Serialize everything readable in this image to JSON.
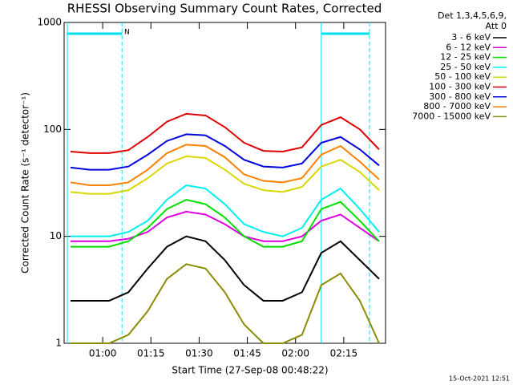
{
  "chart_data": {
    "type": "line",
    "title": "RHESSI Observing Summary Count Rates, Corrected",
    "x_label": "Start Time (27-Sep-08 00:48:22)",
    "y_label": "Corrected Count Rate (s⁻¹ detector⁻¹)",
    "footer": "15-Oct-2021 12:51",
    "legend_title": [
      "Det 1,3,4,5,6,9,",
      "Att 0"
    ],
    "annotation": "N",
    "night_intervals": [
      [
        "00:49",
        "01:06"
      ],
      [
        "02:08",
        "02:23"
      ]
    ],
    "night_color": "#00e0f0",
    "log_scale": true,
    "ylim": [
      1,
      1000
    ],
    "yticks": [
      1,
      10,
      100,
      1000
    ],
    "xlim": [
      "00:48",
      "02:28"
    ],
    "xticks": [
      "01:00",
      "01:15",
      "01:30",
      "01:45",
      "02:00",
      "02:15"
    ],
    "x": [
      "00:50",
      "00:56",
      "01:02",
      "01:08",
      "01:14",
      "01:20",
      "01:26",
      "01:32",
      "01:38",
      "01:44",
      "01:50",
      "01:56",
      "02:02",
      "02:08",
      "02:14",
      "02:20",
      "02:26"
    ],
    "series": [
      {
        "name": "3 - 6 keV",
        "color": "#000000",
        "values": [
          2.5,
          2.5,
          2.5,
          3,
          5,
          8,
          10,
          9,
          6,
          3.5,
          2.5,
          2.5,
          3,
          7,
          9,
          6,
          4
        ]
      },
      {
        "name": "6 - 12 keV",
        "color": "#e000e0",
        "values": [
          9,
          9,
          9,
          9.5,
          11,
          15,
          17,
          16,
          13,
          10,
          9,
          9,
          10,
          14,
          16,
          12,
          9
        ]
      },
      {
        "name": "12 - 25 keV",
        "color": "#00e000",
        "values": [
          8,
          8,
          8,
          9,
          12,
          18,
          22,
          20,
          15,
          10,
          8,
          8,
          9,
          18,
          21,
          14,
          9
        ]
      },
      {
        "name": "25 - 50 keV",
        "color": "#00f0f0",
        "values": [
          10,
          10,
          10,
          11,
          14,
          22,
          30,
          28,
          20,
          13,
          11,
          10,
          12,
          22,
          28,
          18,
          11
        ]
      },
      {
        "name": "50 - 100 keV",
        "color": "#d8d800",
        "values": [
          26,
          25,
          25,
          27,
          35,
          48,
          56,
          54,
          42,
          31,
          27,
          26,
          29,
          45,
          52,
          40,
          27
        ]
      },
      {
        "name": "100 - 300 keV",
        "color": "#e00000",
        "values": [
          62,
          60,
          60,
          64,
          85,
          118,
          140,
          135,
          105,
          75,
          63,
          62,
          68,
          110,
          130,
          100,
          65
        ]
      },
      {
        "name": "300 - 800 keV",
        "color": "#0000e0",
        "values": [
          44,
          42,
          42,
          45,
          58,
          78,
          90,
          88,
          70,
          52,
          45,
          44,
          48,
          75,
          85,
          65,
          46
        ]
      },
      {
        "name": "800 - 7000 keV",
        "color": "#ff8000",
        "values": [
          32,
          30,
          30,
          32,
          42,
          60,
          72,
          70,
          55,
          38,
          33,
          32,
          35,
          58,
          70,
          50,
          34
        ]
      },
      {
        "name": "7000 - 15000 keV",
        "color": "#8c8c00",
        "values": [
          1,
          1,
          1,
          1.2,
          2,
          4,
          5.5,
          5,
          3,
          1.5,
          1,
          1,
          1.2,
          3.5,
          4.5,
          2.5,
          1
        ]
      }
    ]
  }
}
